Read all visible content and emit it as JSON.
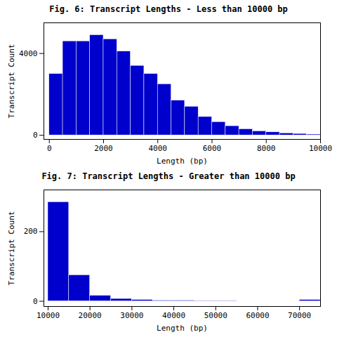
{
  "chart_data": [
    {
      "type": "histogram",
      "title": "Fig. 6: Transcript Lengths - Less than 10000 bp",
      "xlabel": "Length (bp)",
      "ylabel": "Transcript Count",
      "bins": [
        0,
        500,
        1000,
        1500,
        2000,
        2500,
        3000,
        3500,
        4000,
        4500,
        5000,
        5500,
        6000,
        6500,
        7000,
        7500,
        8000,
        8500,
        9000,
        9500,
        10000
      ],
      "values": [
        3000,
        4600,
        4600,
        4900,
        4700,
        4100,
        3400,
        3000,
        2500,
        1700,
        1400,
        900,
        650,
        450,
        300,
        200,
        150,
        100,
        70,
        40
      ],
      "color": "#0000cc",
      "xlim": [
        -200,
        10000
      ],
      "ylim": [
        -200,
        5500
      ],
      "xticks": [
        0,
        2000,
        4000,
        6000,
        8000,
        10000
      ],
      "yticks": [
        0,
        4000
      ],
      "grid": false
    },
    {
      "type": "histogram",
      "title": "Fig. 7: Transcript Lengths - Greater than 10000 bp",
      "xlabel": "Length (bp)",
      "ylabel": "Transcript Count",
      "bins": [
        10000,
        15000,
        20000,
        25000,
        30000,
        35000,
        40000,
        45000,
        50000,
        55000,
        60000,
        65000,
        70000,
        75000
      ],
      "values": [
        285,
        75,
        16,
        7,
        4,
        2,
        2,
        1,
        1,
        0,
        0,
        0,
        4
      ],
      "color": "#0000cc",
      "xlim": [
        9000,
        75000
      ],
      "ylim": [
        -15,
        320
      ],
      "xticks": [
        10000,
        20000,
        30000,
        40000,
        50000,
        60000,
        70000
      ],
      "yticks": [
        0,
        200
      ],
      "grid": false
    }
  ]
}
